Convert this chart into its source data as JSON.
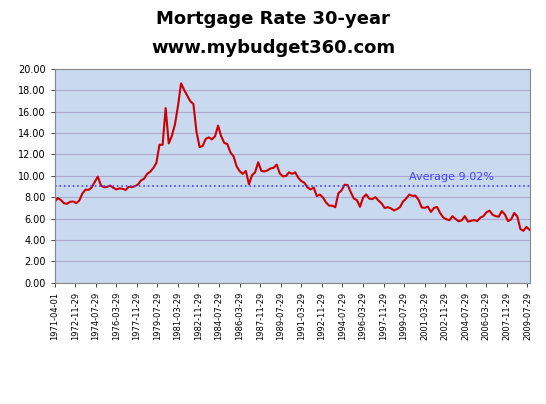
{
  "title_line1": "Mortgage Rate 30-year",
  "title_line2": "www.mybudget360.com",
  "average_rate": 9.02,
  "average_label": "Average 9.02%",
  "ylim": [
    0.0,
    20.0
  ],
  "yticks": [
    0.0,
    2.0,
    4.0,
    6.0,
    8.0,
    10.0,
    12.0,
    14.0,
    16.0,
    18.0,
    20.0
  ],
  "line_color": "#CC0000",
  "avg_line_color": "#4444FF",
  "background_color": "#C9D9F0",
  "plot_area_bg": "#DDEEFF",
  "grid_color": "#AAAACC",
  "data": [
    [
      "1971-04-01",
      7.54
    ],
    [
      "1971-07-01",
      7.92
    ],
    [
      "1971-10-01",
      7.74
    ],
    [
      "1972-01-01",
      7.44
    ],
    [
      "1972-04-01",
      7.38
    ],
    [
      "1972-07-01",
      7.56
    ],
    [
      "1972-10-01",
      7.6
    ],
    [
      "1973-01-01",
      7.44
    ],
    [
      "1973-04-01",
      7.68
    ],
    [
      "1973-07-01",
      8.34
    ],
    [
      "1973-10-01",
      8.7
    ],
    [
      "1974-01-01",
      8.68
    ],
    [
      "1974-04-01",
      8.9
    ],
    [
      "1974-07-01",
      9.42
    ],
    [
      "1974-10-01",
      9.92
    ],
    [
      "1975-01-01",
      9.1
    ],
    [
      "1975-04-01",
      8.92
    ],
    [
      "1975-07-01",
      8.96
    ],
    [
      "1975-10-01",
      9.08
    ],
    [
      "1976-01-01",
      8.88
    ],
    [
      "1976-04-01",
      8.72
    ],
    [
      "1976-07-01",
      8.82
    ],
    [
      "1976-10-01",
      8.78
    ],
    [
      "1977-01-01",
      8.68
    ],
    [
      "1977-04-01",
      8.96
    ],
    [
      "1977-07-01",
      8.94
    ],
    [
      "1977-10-01",
      9.02
    ],
    [
      "1978-01-01",
      9.18
    ],
    [
      "1978-04-01",
      9.56
    ],
    [
      "1978-07-01",
      9.72
    ],
    [
      "1978-10-01",
      10.18
    ],
    [
      "1979-01-01",
      10.38
    ],
    [
      "1979-04-01",
      10.72
    ],
    [
      "1979-07-01",
      11.2
    ],
    [
      "1979-10-01",
      12.9
    ],
    [
      "1980-01-01",
      12.88
    ],
    [
      "1980-04-01",
      16.32
    ],
    [
      "1980-07-01",
      13.02
    ],
    [
      "1980-10-01",
      13.72
    ],
    [
      "1981-01-01",
      14.8
    ],
    [
      "1981-04-01",
      16.52
    ],
    [
      "1981-07-01",
      18.63
    ],
    [
      "1981-10-01",
      18.01
    ],
    [
      "1982-01-01",
      17.48
    ],
    [
      "1982-04-01",
      16.96
    ],
    [
      "1982-07-01",
      16.7
    ],
    [
      "1982-10-01",
      14.1
    ],
    [
      "1983-01-01",
      12.68
    ],
    [
      "1983-04-01",
      12.78
    ],
    [
      "1983-07-01",
      13.44
    ],
    [
      "1983-10-01",
      13.58
    ],
    [
      "1984-01-01",
      13.4
    ],
    [
      "1984-04-01",
      13.68
    ],
    [
      "1984-07-01",
      14.68
    ],
    [
      "1984-10-01",
      13.68
    ],
    [
      "1985-01-01",
      13.06
    ],
    [
      "1985-04-01",
      12.96
    ],
    [
      "1985-07-01",
      12.18
    ],
    [
      "1985-10-01",
      11.82
    ],
    [
      "1986-01-01",
      10.88
    ],
    [
      "1986-04-01",
      10.42
    ],
    [
      "1986-07-01",
      10.18
    ],
    [
      "1986-10-01",
      10.44
    ],
    [
      "1987-01-01",
      9.2
    ],
    [
      "1987-04-01",
      10.04
    ],
    [
      "1987-07-01",
      10.32
    ],
    [
      "1987-10-01",
      11.26
    ],
    [
      "1988-01-01",
      10.46
    ],
    [
      "1988-04-01",
      10.4
    ],
    [
      "1988-07-01",
      10.5
    ],
    [
      "1988-10-01",
      10.68
    ],
    [
      "1989-01-01",
      10.74
    ],
    [
      "1989-04-01",
      11.04
    ],
    [
      "1989-07-01",
      10.22
    ],
    [
      "1989-10-01",
      9.94
    ],
    [
      "1990-01-01",
      9.98
    ],
    [
      "1990-04-01",
      10.32
    ],
    [
      "1990-07-01",
      10.18
    ],
    [
      "1990-10-01",
      10.32
    ],
    [
      "1991-01-01",
      9.8
    ],
    [
      "1991-04-01",
      9.5
    ],
    [
      "1991-07-01",
      9.34
    ],
    [
      "1991-10-01",
      8.9
    ],
    [
      "1992-01-01",
      8.72
    ],
    [
      "1992-04-01",
      8.9
    ],
    [
      "1992-07-01",
      8.1
    ],
    [
      "1992-10-01",
      8.24
    ],
    [
      "1993-01-01",
      7.96
    ],
    [
      "1993-04-01",
      7.5
    ],
    [
      "1993-07-01",
      7.21
    ],
    [
      "1993-10-01",
      7.2
    ],
    [
      "1994-01-01",
      7.06
    ],
    [
      "1994-04-01",
      8.36
    ],
    [
      "1994-07-01",
      8.62
    ],
    [
      "1994-10-01",
      9.16
    ],
    [
      "1995-01-01",
      9.14
    ],
    [
      "1995-04-01",
      8.48
    ],
    [
      "1995-07-01",
      7.88
    ],
    [
      "1995-10-01",
      7.72
    ],
    [
      "1996-01-01",
      7.1
    ],
    [
      "1996-04-01",
      7.96
    ],
    [
      "1996-07-01",
      8.26
    ],
    [
      "1996-10-01",
      7.86
    ],
    [
      "1997-01-01",
      7.82
    ],
    [
      "1997-04-01",
      8.0
    ],
    [
      "1997-07-01",
      7.68
    ],
    [
      "1997-10-01",
      7.42
    ],
    [
      "1998-01-01",
      6.99
    ],
    [
      "1998-04-01",
      7.06
    ],
    [
      "1998-07-01",
      6.96
    ],
    [
      "1998-10-01",
      6.76
    ],
    [
      "1999-01-01",
      6.88
    ],
    [
      "1999-04-01",
      7.08
    ],
    [
      "1999-07-01",
      7.6
    ],
    [
      "1999-10-01",
      7.88
    ],
    [
      "2000-01-01",
      8.24
    ],
    [
      "2000-04-01",
      8.12
    ],
    [
      "2000-07-01",
      8.14
    ],
    [
      "2000-10-01",
      7.74
    ],
    [
      "2001-01-01",
      7.04
    ],
    [
      "2001-04-01",
      7.0
    ],
    [
      "2001-07-01",
      7.12
    ],
    [
      "2001-10-01",
      6.62
    ],
    [
      "2002-01-01",
      7.0
    ],
    [
      "2002-04-01",
      7.08
    ],
    [
      "2002-07-01",
      6.52
    ],
    [
      "2002-10-01",
      6.1
    ],
    [
      "2003-01-01",
      5.94
    ],
    [
      "2003-04-01",
      5.84
    ],
    [
      "2003-07-01",
      6.22
    ],
    [
      "2003-10-01",
      5.96
    ],
    [
      "2004-01-01",
      5.74
    ],
    [
      "2004-04-01",
      5.84
    ],
    [
      "2004-07-01",
      6.22
    ],
    [
      "2004-10-01",
      5.72
    ],
    [
      "2005-01-01",
      5.78
    ],
    [
      "2005-04-01",
      5.86
    ],
    [
      "2005-07-01",
      5.76
    ],
    [
      "2005-10-01",
      6.08
    ],
    [
      "2006-01-01",
      6.22
    ],
    [
      "2006-04-01",
      6.58
    ],
    [
      "2006-07-01",
      6.74
    ],
    [
      "2006-10-01",
      6.36
    ],
    [
      "2007-01-01",
      6.22
    ],
    [
      "2007-04-01",
      6.18
    ],
    [
      "2007-07-01",
      6.7
    ],
    [
      "2007-10-01",
      6.38
    ],
    [
      "2008-01-01",
      5.76
    ],
    [
      "2008-04-01",
      5.92
    ],
    [
      "2008-07-01",
      6.52
    ],
    [
      "2008-10-01",
      6.2
    ],
    [
      "2009-01-01",
      5.02
    ],
    [
      "2009-04-01",
      4.86
    ],
    [
      "2009-07-01",
      5.22
    ],
    [
      "2009-10-01",
      4.94
    ]
  ]
}
